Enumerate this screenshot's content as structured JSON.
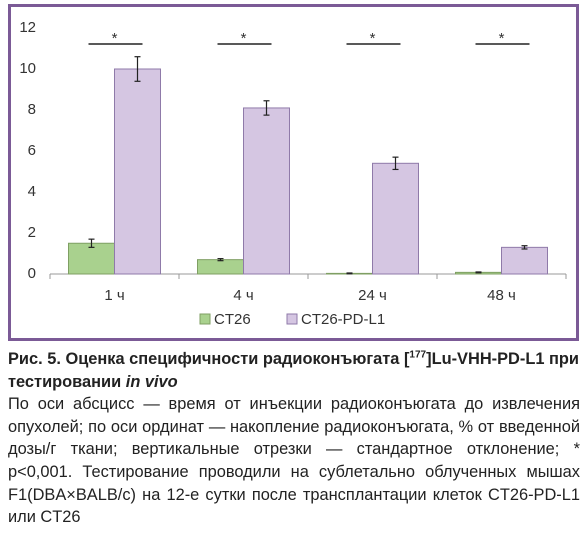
{
  "chart_data": {
    "type": "bar",
    "categories": [
      "1 ч",
      "4 ч",
      "24 ч",
      "48 ч"
    ],
    "series": [
      {
        "name": "CT26",
        "color": "#a9d18e",
        "values": [
          1.5,
          0.7,
          0.03,
          0.08
        ],
        "errors": [
          0.2,
          0.05,
          0.02,
          0.02
        ]
      },
      {
        "name": "CT26-PD-L1",
        "color": "#d5c6e2",
        "values": [
          10.0,
          8.1,
          5.4,
          1.3
        ],
        "errors": [
          0.6,
          0.35,
          0.3,
          0.08
        ]
      }
    ],
    "annotations": [
      "*",
      "*",
      "*",
      "*"
    ],
    "ylim": [
      0,
      12
    ],
    "yticks": [
      0,
      2,
      4,
      6,
      8,
      10,
      12
    ],
    "grid": false,
    "legend": "bottom"
  },
  "caption": {
    "title": [
      "Рис. 5. Оценка специфичности радиоконъюгата [",
      "177",
      "]Lu-VHH-PD-L1 при тестировании ",
      "in vivo"
    ],
    "text": "По оси абсцисс — время от инъекции радиоконъюгата до извлечения опухолей; по оси ординат — накопление радиоконъюгата, % от введенной дозы/г ткани; вертикальные отрезки — стандартное отклонение; * p<0,001. Тестирование проводили на сублетально облученных мышах F1(DBA×BALB/c) на 12-е сутки после трансплантации клеток CT26-PD-L1 или CT26"
  }
}
